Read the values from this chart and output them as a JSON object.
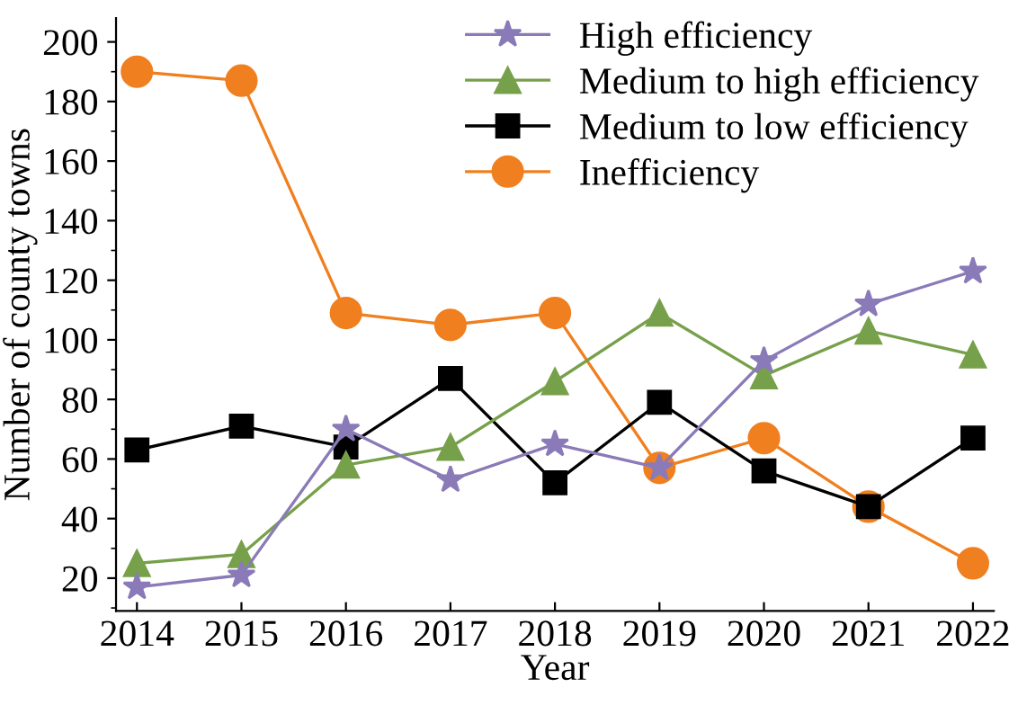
{
  "chart_data": {
    "type": "line",
    "xlabel": "Year",
    "ylabel": "Number of county towns",
    "categories": [
      "2014",
      "2015",
      "2016",
      "2017",
      "2018",
      "2019",
      "2020",
      "2021",
      "2022"
    ],
    "ylim": [
      9,
      208
    ],
    "yticks": [
      20,
      40,
      60,
      80,
      100,
      120,
      140,
      160,
      180,
      200
    ],
    "grid": false,
    "legend": "top right",
    "series": [
      {
        "name": "High efficiency",
        "color": "#8a7ab8",
        "marker": "star",
        "values": [
          17,
          21,
          70,
          53,
          65,
          57,
          93,
          112,
          123
        ]
      },
      {
        "name": "Medium to high efficiency",
        "color": "#77a04a",
        "marker": "triangle",
        "values": [
          25,
          28,
          58,
          64,
          86,
          109,
          88,
          103,
          95
        ]
      },
      {
        "name": "Medium to low efficiency",
        "color": "#000000",
        "marker": "square",
        "values": [
          63,
          71,
          64,
          87,
          52,
          79,
          56,
          44,
          67
        ]
      },
      {
        "name": "Inefficiency",
        "color": "#f07f1f",
        "marker": "circle",
        "values": [
          190,
          187,
          109,
          105,
          109,
          57,
          67,
          44,
          25
        ]
      }
    ]
  }
}
